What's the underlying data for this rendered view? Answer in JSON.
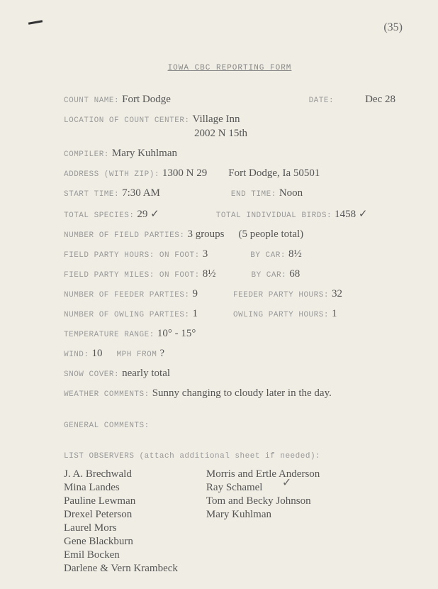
{
  "page_number": "35",
  "title": "IOWA CBC REPORTING FORM",
  "fields": {
    "count_name": {
      "label": "COUNT NAME:",
      "value": "Fort Dodge"
    },
    "date": {
      "label": "DATE:",
      "value": "Dec 28"
    },
    "location_label": "LOCATION OF COUNT CENTER:",
    "location_line1": "Village Inn",
    "location_line2": "2002 N 15th",
    "compiler": {
      "label": "COMPILER:",
      "value": "Mary Kuhlman"
    },
    "address": {
      "label": "ADDRESS (WITH ZIP):",
      "value": "1300 N 29",
      "value2": "Fort Dodge, Ia 50501"
    },
    "start_time": {
      "label": "START TIME:",
      "value": "7:30 AM"
    },
    "end_time": {
      "label": "END TIME:",
      "value": "Noon"
    },
    "total_species": {
      "label": "TOTAL SPECIES:",
      "value": "29 ✓"
    },
    "total_birds": {
      "label": "TOTAL INDIVIDUAL BIRDS:",
      "value": "1458 ✓"
    },
    "field_parties": {
      "label": "NUMBER OF FIELD PARTIES:",
      "value": "3 groups",
      "note": "(5 people total)"
    },
    "party_hours_foot": {
      "label": "FIELD PARTY HOURS: ON FOOT:",
      "value": "3"
    },
    "party_hours_car": {
      "label": "BY CAR:",
      "value": "8½"
    },
    "party_miles_foot": {
      "label": "FIELD PARTY MILES: ON FOOT:",
      "value": "8½"
    },
    "party_miles_car": {
      "label": "BY CAR:",
      "value": "68"
    },
    "feeder_parties": {
      "label": "NUMBER OF FEEDER PARTIES:",
      "value": "9"
    },
    "feeder_hours": {
      "label": "FEEDER PARTY HOURS:",
      "value": "32"
    },
    "owling_parties": {
      "label": "NUMBER OF OWLING PARTIES:",
      "value": "1"
    },
    "owling_hours": {
      "label": "OWLING PARTY HOURS:",
      "value": "1"
    },
    "temp_range": {
      "label": "TEMPERATURE RANGE:",
      "value": "10° - 15°"
    },
    "wind": {
      "label": "WIND:",
      "value": "10",
      "label2": "MPH FROM",
      "value2": "?"
    },
    "snow": {
      "label": "SNOW COVER:",
      "value": "nearly total"
    },
    "weather": {
      "label": "WEATHER COMMENTS:",
      "value": "Sunny changing to cloudy later in the day."
    },
    "general_comments": "GENERAL COMMENTS:",
    "observers_label": "LIST OBSERVERS (attach additional sheet if needed):"
  },
  "observers_col1": [
    "J. A. Brechwald",
    "Mina Landes",
    "Pauline Lewman",
    "Drexel Peterson",
    "Laurel Mors",
    "Gene Blackburn",
    "Emil Bocken",
    "Darlene & Vern Krambeck"
  ],
  "observers_col2": [
    "Morris and Ertle Anderson",
    "Ray Schamel",
    "Tom and Becky Johnson",
    "Mary Kuhlman"
  ],
  "observer_check": "✓"
}
